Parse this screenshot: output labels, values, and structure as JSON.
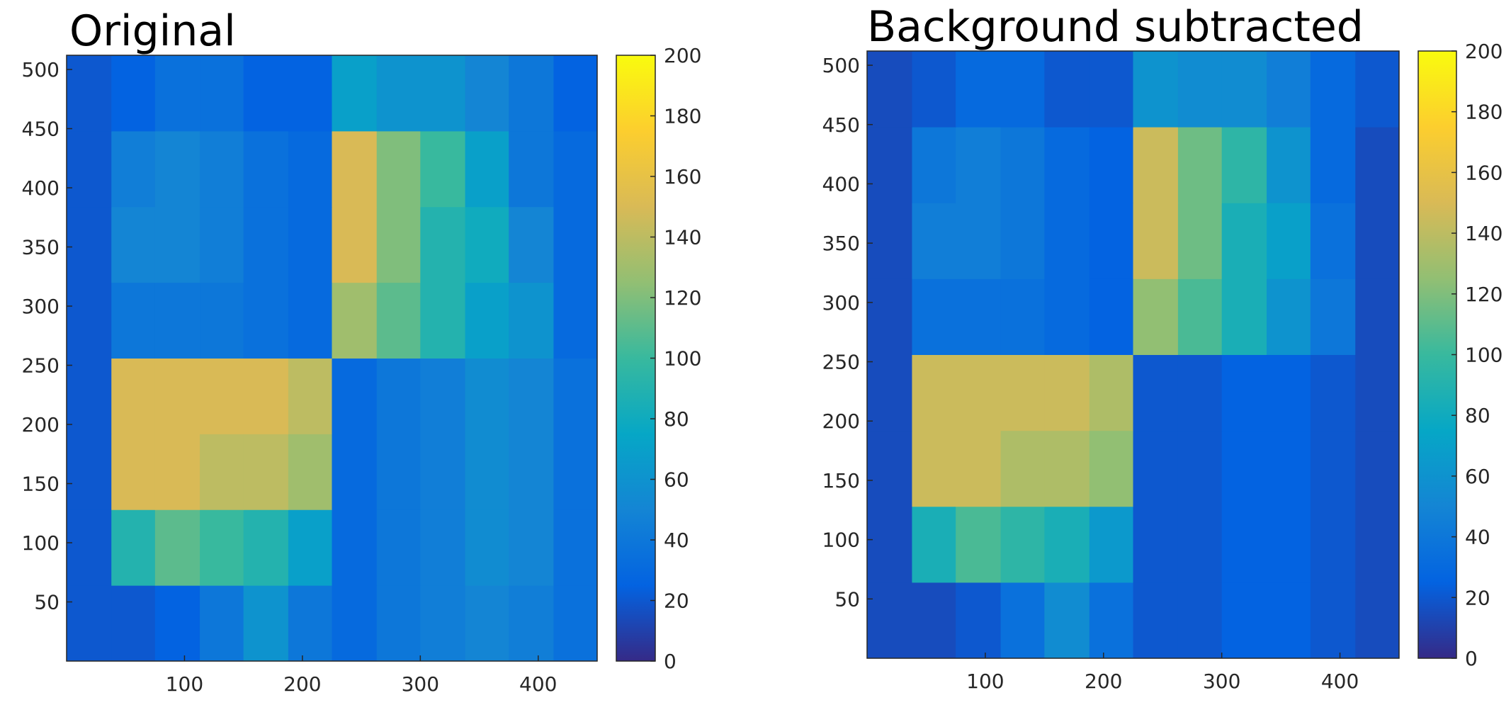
{
  "chart_data": [
    {
      "type": "heatmap",
      "title": "Original",
      "x_edges": [
        0,
        38,
        75,
        113,
        150,
        188,
        225,
        263,
        300,
        338,
        375,
        413,
        450
      ],
      "y_edges": [
        0,
        64,
        128,
        192,
        256,
        320,
        384,
        448,
        512
      ],
      "z": [
        [
          20,
          20,
          25,
          40,
          60,
          40,
          30,
          40,
          45,
          50,
          45,
          35
        ],
        [
          20,
          90,
          110,
          100,
          90,
          70,
          30,
          40,
          45,
          55,
          50,
          35
        ],
        [
          20,
          150,
          150,
          140,
          140,
          130,
          30,
          40,
          45,
          55,
          50,
          35
        ],
        [
          20,
          150,
          150,
          150,
          150,
          140,
          30,
          40,
          45,
          55,
          50,
          35
        ],
        [
          20,
          40,
          40,
          40,
          35,
          30,
          130,
          110,
          90,
          70,
          60,
          30
        ],
        [
          20,
          50,
          50,
          45,
          35,
          30,
          150,
          120,
          90,
          80,
          50,
          30
        ],
        [
          20,
          45,
          50,
          45,
          35,
          30,
          150,
          120,
          100,
          70,
          40,
          30
        ],
        [
          20,
          25,
          35,
          35,
          25,
          25,
          70,
          60,
          60,
          50,
          40,
          25
        ]
      ],
      "xlim": [
        0,
        450
      ],
      "ylim": [
        0,
        512
      ],
      "xticks": [
        100,
        200,
        300,
        400
      ],
      "yticks": [
        50,
        100,
        150,
        200,
        250,
        300,
        350,
        400,
        450,
        500
      ],
      "clim": [
        0,
        200
      ],
      "cticks": [
        0,
        20,
        40,
        60,
        80,
        100,
        120,
        140,
        160,
        180,
        200
      ],
      "colormap": [
        "#352a87",
        "#0363e1",
        "#1485d4",
        "#06a7c6",
        "#38b99e",
        "#92bf73",
        "#d9ba56",
        "#fcce2e",
        "#f9fb0e"
      ]
    },
    {
      "type": "heatmap",
      "title": "Background subtracted",
      "x_edges": [
        0,
        38,
        75,
        113,
        150,
        188,
        225,
        263,
        300,
        338,
        375,
        413,
        450
      ],
      "y_edges": [
        0,
        64,
        128,
        192,
        256,
        320,
        384,
        448,
        512
      ],
      "z": [
        [
          15,
          15,
          20,
          35,
          55,
          35,
          20,
          20,
          25,
          25,
          20,
          15
        ],
        [
          15,
          85,
          105,
          95,
          85,
          65,
          20,
          20,
          25,
          25,
          20,
          15
        ],
        [
          15,
          145,
          145,
          135,
          135,
          125,
          20,
          20,
          25,
          25,
          20,
          15
        ],
        [
          15,
          145,
          145,
          145,
          145,
          135,
          20,
          20,
          25,
          25,
          20,
          15
        ],
        [
          15,
          35,
          35,
          35,
          30,
          25,
          125,
          105,
          85,
          60,
          40,
          15
        ],
        [
          15,
          45,
          45,
          40,
          30,
          25,
          145,
          115,
          85,
          70,
          35,
          15
        ],
        [
          15,
          40,
          45,
          40,
          30,
          25,
          145,
          115,
          95,
          60,
          30,
          15
        ],
        [
          15,
          20,
          30,
          30,
          20,
          20,
          60,
          55,
          55,
          45,
          30,
          20
        ]
      ],
      "xlim": [
        0,
        450
      ],
      "ylim": [
        0,
        512
      ],
      "xticks": [
        100,
        200,
        300,
        400
      ],
      "yticks": [
        50,
        100,
        150,
        200,
        250,
        300,
        350,
        400,
        450,
        500
      ],
      "clim": [
        0,
        200
      ],
      "cticks": [
        0,
        20,
        40,
        60,
        80,
        100,
        120,
        140,
        160,
        180,
        200
      ],
      "colormap": [
        "#352a87",
        "#0363e1",
        "#1485d4",
        "#06a7c6",
        "#38b99e",
        "#92bf73",
        "#d9ba56",
        "#fcce2e",
        "#f9fb0e"
      ]
    }
  ]
}
